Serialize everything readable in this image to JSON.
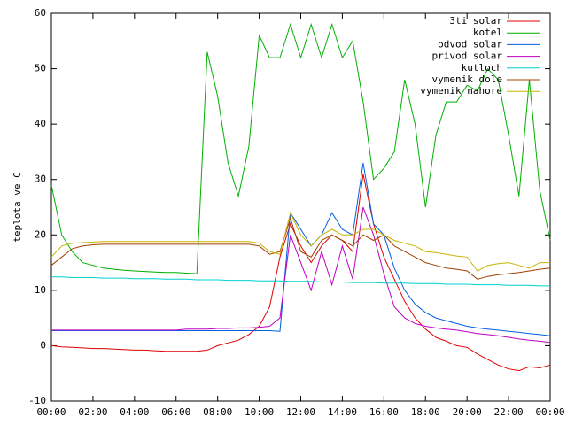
{
  "chart_data": {
    "type": "line",
    "y_label": "teplota ve C",
    "x": [
      0,
      0.5,
      1,
      1.5,
      2,
      2.5,
      3,
      3.5,
      4,
      4.5,
      5,
      5.5,
      6,
      6.5,
      7,
      7.5,
      8,
      8.5,
      9,
      9.5,
      10,
      10.5,
      11,
      11.5,
      12,
      12.5,
      13,
      13.5,
      14,
      14.5,
      15,
      15.5,
      16,
      16.5,
      17,
      17.5,
      18,
      18.5,
      19,
      19.5,
      20,
      20.5,
      21,
      21.5,
      22,
      22.5,
      23,
      23.5,
      24
    ],
    "xlim": [
      0,
      24
    ],
    "xticks": [
      {
        "value": 0,
        "label": "00:00"
      },
      {
        "value": 2,
        "label": "02:00"
      },
      {
        "value": 4,
        "label": "04:00"
      },
      {
        "value": 6,
        "label": "06:00"
      },
      {
        "value": 8,
        "label": "08:00"
      },
      {
        "value": 10,
        "label": "10:00"
      },
      {
        "value": 12,
        "label": "12:00"
      },
      {
        "value": 14,
        "label": "14:00"
      },
      {
        "value": 16,
        "label": "16:00"
      },
      {
        "value": 18,
        "label": "18:00"
      },
      {
        "value": 20,
        "label": "20:00"
      },
      {
        "value": 22,
        "label": "22:00"
      },
      {
        "value": 24,
        "label": "00:00"
      }
    ],
    "ylim": [
      -10,
      60
    ],
    "yticks": [
      -10,
      0,
      10,
      20,
      30,
      40,
      50,
      60
    ],
    "legend": "top-right",
    "series": [
      {
        "name": "3ti solar",
        "color": "#e00000",
        "values": [
          0,
          -0.2,
          -0.3,
          -0.4,
          -0.5,
          -0.5,
          -0.6,
          -0.7,
          -0.8,
          -0.8,
          -0.9,
          -1,
          -1,
          -1,
          -1,
          -0.8,
          0,
          0.5,
          1,
          2,
          3.5,
          7,
          16,
          22,
          18,
          15,
          18,
          20,
          19,
          17,
          31,
          22,
          16,
          12,
          8,
          5,
          3,
          1.5,
          0.8,
          0,
          -0.3,
          -1.5,
          -2.5,
          -3.5,
          -4.2,
          -4.5,
          -3.8,
          -4,
          -3.5
        ]
      },
      {
        "name": "kotel",
        "color": "#00b000",
        "values": [
          29,
          20,
          17,
          15,
          14.5,
          14,
          13.8,
          13.6,
          13.5,
          13.4,
          13.3,
          13.2,
          13.2,
          13.1,
          13,
          53,
          45,
          33,
          27,
          36,
          56,
          52,
          52,
          58,
          52,
          58,
          52,
          58,
          52,
          55,
          44,
          30,
          32,
          35,
          48,
          40,
          25,
          38,
          44,
          44,
          47,
          46,
          50,
          48,
          38,
          27,
          48,
          28,
          19
        ]
      },
      {
        "name": "odvod solar",
        "color": "#0060e0",
        "values": [
          2.7,
          2.7,
          2.7,
          2.7,
          2.7,
          2.7,
          2.7,
          2.7,
          2.7,
          2.7,
          2.7,
          2.7,
          2.7,
          2.7,
          2.7,
          2.7,
          2.7,
          2.7,
          2.7,
          2.7,
          2.7,
          2.7,
          2.6,
          24,
          21,
          18,
          20,
          24,
          21,
          20,
          33,
          22,
          20,
          14,
          10,
          7.5,
          6,
          5,
          4.5,
          4,
          3.5,
          3.2,
          3,
          2.8,
          2.6,
          2.4,
          2.2,
          2,
          1.8
        ]
      },
      {
        "name": "privod solar",
        "color": "#c000c0",
        "values": [
          2.8,
          2.8,
          2.8,
          2.8,
          2.8,
          2.8,
          2.8,
          2.8,
          2.8,
          2.8,
          2.8,
          2.8,
          2.8,
          3,
          3,
          3,
          3.1,
          3.1,
          3.2,
          3.2,
          3.3,
          3.5,
          5,
          20,
          15,
          10,
          17,
          11,
          18,
          12,
          25,
          20,
          13,
          7,
          5,
          4,
          3.5,
          3.2,
          3,
          2.8,
          2.5,
          2.2,
          2,
          1.8,
          1.5,
          1.2,
          1,
          0.8,
          0.6
        ]
      },
      {
        "name": "kutloch",
        "color": "#00d0d0",
        "values": [
          12.4,
          12.4,
          12.3,
          12.3,
          12.3,
          12.2,
          12.2,
          12.2,
          12.1,
          12.1,
          12.1,
          12,
          12,
          12,
          11.9,
          11.9,
          11.9,
          11.8,
          11.8,
          11.8,
          11.7,
          11.7,
          11.7,
          11.6,
          11.6,
          11.6,
          11.5,
          11.5,
          11.5,
          11.4,
          11.4,
          11.4,
          11.3,
          11.3,
          11.3,
          11.2,
          11.2,
          11.2,
          11.1,
          11.1,
          11.1,
          11,
          11,
          11,
          10.9,
          10.9,
          10.9,
          10.8,
          10.8
        ]
      },
      {
        "name": "vymenik dole",
        "color": "#a04000",
        "values": [
          14.5,
          16,
          17.5,
          18,
          18.2,
          18.3,
          18.3,
          18.3,
          18.3,
          18.3,
          18.3,
          18.3,
          18.3,
          18.3,
          18.3,
          18.3,
          18.3,
          18.3,
          18.3,
          18.3,
          18,
          16.5,
          17,
          23,
          17,
          16,
          19,
          20,
          19,
          18,
          20,
          19,
          20,
          18,
          17,
          16,
          15,
          14.5,
          14,
          13.8,
          13.5,
          12,
          12.5,
          12.8,
          13,
          13.2,
          13.5,
          13.8,
          14
        ]
      },
      {
        "name": "vymenik nahore",
        "color": "#c8b400",
        "values": [
          16,
          18,
          18.5,
          18.6,
          18.7,
          18.8,
          18.8,
          18.8,
          18.8,
          18.8,
          18.8,
          18.8,
          18.8,
          18.8,
          18.8,
          18.8,
          18.8,
          18.8,
          18.8,
          18.8,
          18.5,
          17,
          16.5,
          24,
          20,
          18,
          20,
          21,
          20,
          20,
          21,
          21,
          20,
          19,
          18.5,
          18,
          17,
          16.8,
          16.5,
          16.2,
          16,
          13.5,
          14.5,
          14.8,
          15,
          14.5,
          14,
          15,
          15
        ]
      }
    ]
  }
}
